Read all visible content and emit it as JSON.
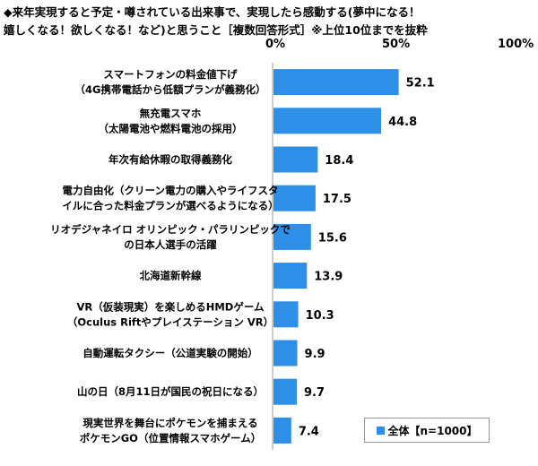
{
  "title": {
    "line1": "◆来年実現すると予定・噂されている出来事で、実現したら感動する(夢中になる！",
    "line2": "嬉しくなる！欲しくなる！など)と思うこと［複数回答形式］※上位10位までを抜粋"
  },
  "axis": {
    "min_label": "0%",
    "mid_label": "50%",
    "max_label": "100%"
  },
  "legend": {
    "label": "全体【n=1000】"
  },
  "colors": {
    "bar": "#2e8fe8",
    "axis": "#9a9a9a"
  },
  "chart_data": {
    "type": "bar",
    "orientation": "horizontal",
    "xlim": [
      0,
      100
    ],
    "categories": [
      [
        "スマートフォンの料金値下げ",
        "（4G携帯電話から低額プランが義務化）"
      ],
      [
        "無充電スマホ",
        "（太陽電池や燃料電池の採用）"
      ],
      [
        "年次有給休暇の取得義務化"
      ],
      [
        "電力自由化（クリーン電力の購入やライフスタ",
        "イルに合った料金プランが選べるようになる）"
      ],
      [
        "リオデジャネイロ オリンピック・パラリンピックで",
        "の日本人選手の活躍"
      ],
      [
        "北海道新幹線"
      ],
      [
        "VR（仮装現実）を楽しめるHMDゲーム",
        "（Oculus Riftやプレイステーション VR）"
      ],
      [
        "自動運転タクシー（公道実験の開始）"
      ],
      [
        "山の日（8月11日が国民の祝日になる）"
      ],
      [
        "現実世界を舞台にポケモンを捕まえる",
        "ポケモンGO（位置情報スマホゲーム）"
      ]
    ],
    "values": [
      52.1,
      44.8,
      18.4,
      17.5,
      15.6,
      13.9,
      10.3,
      9.9,
      9.7,
      7.4
    ],
    "value_labels": [
      "52.1",
      "44.8",
      "18.4",
      "17.5",
      "15.6",
      "13.9",
      "10.3",
      "9.9",
      "9.7",
      "7.4"
    ],
    "series": [
      {
        "name": "全体【n=1000】"
      }
    ]
  }
}
